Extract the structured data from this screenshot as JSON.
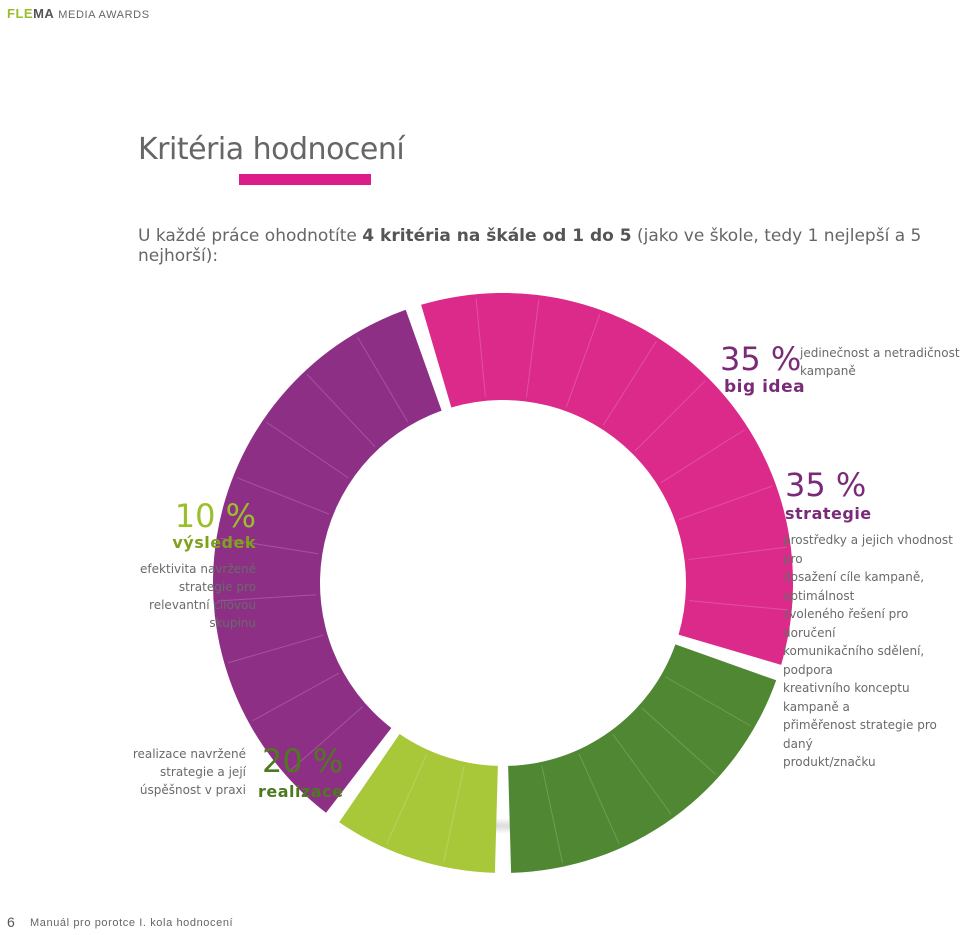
{
  "header": {
    "brand_part1": "FLE",
    "brand_part2": "MA",
    "brand_part3": "MEDIA AWARDS"
  },
  "page": {
    "title": "Kritéria hodnocení",
    "intro_prefix": "U každé práce ohodnotíte ",
    "intro_bold": "4 kritéria na škále od 1 do 5",
    "intro_suffix": " (jako ve škole, tedy 1 nejlepší a 5 nejhorší):"
  },
  "footer": {
    "page_number": "6",
    "text": "Manuál pro porotce I. kola hodnocení"
  },
  "chart_data": {
    "type": "pie",
    "donut": true,
    "categories": [
      "big idea",
      "strategie",
      "realizace",
      "výsledek"
    ],
    "values": [
      35,
      35,
      20,
      10
    ],
    "series": [
      {
        "name": "big idea",
        "value": 35,
        "value_label": "35 %",
        "description": [
          "jedinečnost a netradičnost",
          "kampaně"
        ],
        "color": "#8e2f86"
      },
      {
        "name": "strategie",
        "value": 35,
        "value_label": "35 %",
        "description": [
          "prostředky a jejich vhodnost pro",
          "dosažení cíle kampaně, optimálnost",
          "zvoleného řešení pro doručení",
          "komunikačního sdělení, podpora",
          "kreativního konceptu kampaně a",
          "přiměřenost strategie pro daný",
          "produkt/značku"
        ],
        "color": "#dc2a8a"
      },
      {
        "name": "realizace",
        "value": 20,
        "value_label": "20 %",
        "description": [
          "realizace navržené",
          "strategie a její",
          "úspěšnost v praxi"
        ],
        "color": "#4f8733"
      },
      {
        "name": "výsledek",
        "value": 10,
        "value_label": "10 %",
        "description": [
          "efektivita navržené",
          "strategie pro",
          "relevantní cílovou skupinu"
        ],
        "color": "#a8c83a"
      }
    ]
  }
}
